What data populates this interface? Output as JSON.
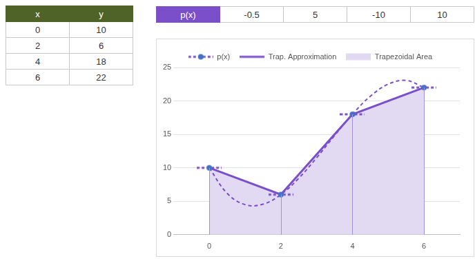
{
  "table": {
    "header": [
      "x",
      "y"
    ],
    "rows": [
      [
        0,
        10
      ],
      [
        2,
        6
      ],
      [
        4,
        18
      ],
      [
        6,
        22
      ]
    ]
  },
  "coefficients": {
    "label": "p(x)",
    "values": [
      -0.5,
      5,
      -10,
      10
    ]
  },
  "chart_data": {
    "type": "line",
    "xlim": [
      -1,
      7
    ],
    "xticks": [
      0,
      2,
      4,
      6
    ],
    "ylim": [
      0,
      25
    ],
    "yticks": [
      0,
      5,
      10,
      15,
      20,
      25
    ],
    "grid": true,
    "legend": "top",
    "series": [
      {
        "name": "Trapezoidal Area",
        "type": "area",
        "color": "#e2daf3",
        "x": [
          0,
          2,
          4,
          6
        ],
        "values": [
          10,
          6,
          18,
          22
        ]
      },
      {
        "name": "Trap. Approximation",
        "type": "line",
        "color": "#7a4fc9",
        "line_style": "solid",
        "marker": "none",
        "x": [
          0,
          2,
          4,
          6
        ],
        "values": [
          10,
          6,
          18,
          22
        ]
      },
      {
        "name": "p(x)",
        "type": "line",
        "color": "#7a4fc9",
        "line_style": "dashed",
        "marker": "circle",
        "x": [
          0,
          0.5,
          1,
          1.5,
          2,
          2.5,
          3,
          3.5,
          4,
          4.5,
          5,
          5.5,
          6
        ],
        "values": [
          10,
          6.19,
          4.5,
          4.56,
          6,
          8.44,
          11.5,
          14.81,
          18,
          20.69,
          22.5,
          23.06,
          22
        ]
      }
    ]
  }
}
